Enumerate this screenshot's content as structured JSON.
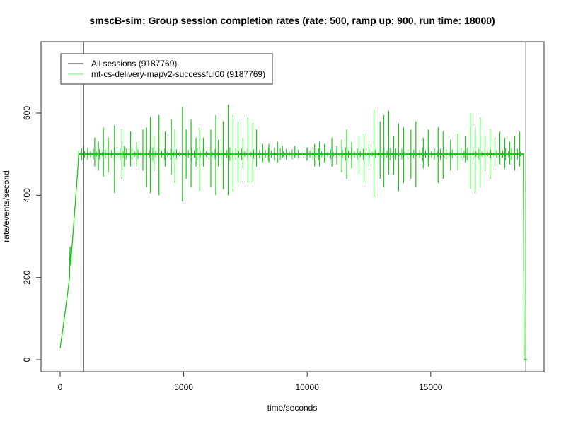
{
  "chart_data": {
    "type": "line",
    "title": "smscB-sim: Group session completion rates (rate: 500, ramp up: 900, run time: 18000)",
    "xlabel": "time/seconds",
    "ylabel": "rate/events/second",
    "xlim": [
      -800,
      19300
    ],
    "ylim": [
      -30,
      770
    ],
    "x_ticks": [
      0,
      5000,
      10000,
      15000
    ],
    "x_tick_labels": [
      "0",
      "5000",
      "10000",
      "15000"
    ],
    "y_ticks": [
      0,
      200,
      400,
      600
    ],
    "y_tick_labels": [
      "0",
      "200",
      "400",
      "600"
    ],
    "grid": false,
    "legend_position": "top-left",
    "legend": [
      {
        "label": "All sessions (9187769)",
        "color": "#333333"
      },
      {
        "label": "mt-cs-delivery-mapv2-successful00 (9187769)",
        "color": "#00cc00"
      }
    ],
    "vertical_markers": [
      {
        "x": 950,
        "color": "#333333"
      },
      {
        "x": 18850,
        "color": "#333333"
      }
    ],
    "series": [
      {
        "name": "mt-cs-delivery-mapv2-successful00 (9187769)",
        "color": "#11cc11",
        "ramp": [
          [
            0,
            28
          ],
          [
            100,
            70
          ],
          [
            200,
            115
          ],
          [
            300,
            160
          ],
          [
            380,
            200
          ],
          [
            400,
            275
          ],
          [
            420,
            230
          ],
          [
            500,
            290
          ],
          [
            600,
            370
          ],
          [
            700,
            450
          ],
          [
            750,
            500
          ]
        ],
        "steady_value": 500,
        "steady_range": [
          750,
          18750
        ],
        "spikes": [
          [
            950,
            520,
            485
          ],
          [
            1400,
            540,
            470
          ],
          [
            1550,
            530,
            460
          ],
          [
            1750,
            565,
            445
          ],
          [
            1950,
            540,
            455
          ],
          [
            2200,
            570,
            405
          ],
          [
            2500,
            560,
            440
          ],
          [
            2600,
            520,
            470
          ],
          [
            2850,
            555,
            470
          ],
          [
            3100,
            530,
            470
          ],
          [
            3350,
            560,
            460
          ],
          [
            3500,
            565,
            420
          ],
          [
            3650,
            590,
            405
          ],
          [
            3800,
            545,
            460
          ],
          [
            4000,
            595,
            400
          ],
          [
            4250,
            555,
            470
          ],
          [
            4500,
            585,
            450
          ],
          [
            4650,
            560,
            430
          ],
          [
            4950,
            615,
            385
          ],
          [
            5100,
            560,
            440
          ],
          [
            5300,
            585,
            420
          ],
          [
            5500,
            540,
            470
          ],
          [
            5650,
            565,
            410
          ],
          [
            5800,
            540,
            470
          ],
          [
            6100,
            560,
            420
          ],
          [
            6300,
            595,
            400
          ],
          [
            6400,
            535,
            470
          ],
          [
            6600,
            580,
            415
          ],
          [
            6800,
            620,
            400
          ],
          [
            7000,
            595,
            410
          ],
          [
            7200,
            580,
            430
          ],
          [
            7400,
            540,
            465
          ],
          [
            7600,
            590,
            430
          ],
          [
            7800,
            575,
            430
          ],
          [
            7950,
            560,
            470
          ],
          [
            8200,
            525,
            480
          ],
          [
            8450,
            525,
            480
          ],
          [
            8800,
            530,
            480
          ],
          [
            9000,
            520,
            490
          ],
          [
            9500,
            520,
            490
          ],
          [
            10000,
            515,
            485
          ],
          [
            10300,
            525,
            470
          ],
          [
            10500,
            530,
            470
          ],
          [
            10700,
            525,
            480
          ],
          [
            11000,
            540,
            470
          ],
          [
            11200,
            520,
            475
          ],
          [
            11400,
            535,
            455
          ],
          [
            11600,
            560,
            440
          ],
          [
            11800,
            530,
            465
          ],
          [
            12100,
            545,
            450
          ],
          [
            12300,
            550,
            430
          ],
          [
            12500,
            525,
            470
          ],
          [
            12700,
            610,
            395
          ],
          [
            12950,
            580,
            440
          ],
          [
            13100,
            595,
            420
          ],
          [
            13300,
            605,
            450
          ],
          [
            13500,
            545,
            450
          ],
          [
            13700,
            575,
            410
          ],
          [
            13900,
            565,
            430
          ],
          [
            14200,
            560,
            440
          ],
          [
            14400,
            580,
            420
          ],
          [
            14700,
            540,
            465
          ],
          [
            14900,
            560,
            470
          ],
          [
            15300,
            565,
            430
          ],
          [
            15500,
            555,
            440
          ],
          [
            15800,
            535,
            460
          ],
          [
            16100,
            550,
            460
          ],
          [
            16400,
            545,
            480
          ],
          [
            16600,
            600,
            415
          ],
          [
            16800,
            565,
            405
          ],
          [
            17000,
            590,
            420
          ],
          [
            17200,
            545,
            460
          ],
          [
            17400,
            560,
            440
          ],
          [
            17600,
            540,
            470
          ],
          [
            17800,
            555,
            475
          ],
          [
            18000,
            540,
            465
          ],
          [
            18200,
            530,
            475
          ],
          [
            18400,
            545,
            460
          ],
          [
            18600,
            555,
            470
          ]
        ],
        "drop": [
          [
            18750,
            500
          ],
          [
            18780,
            0
          ],
          [
            18900,
            0
          ]
        ]
      }
    ]
  }
}
